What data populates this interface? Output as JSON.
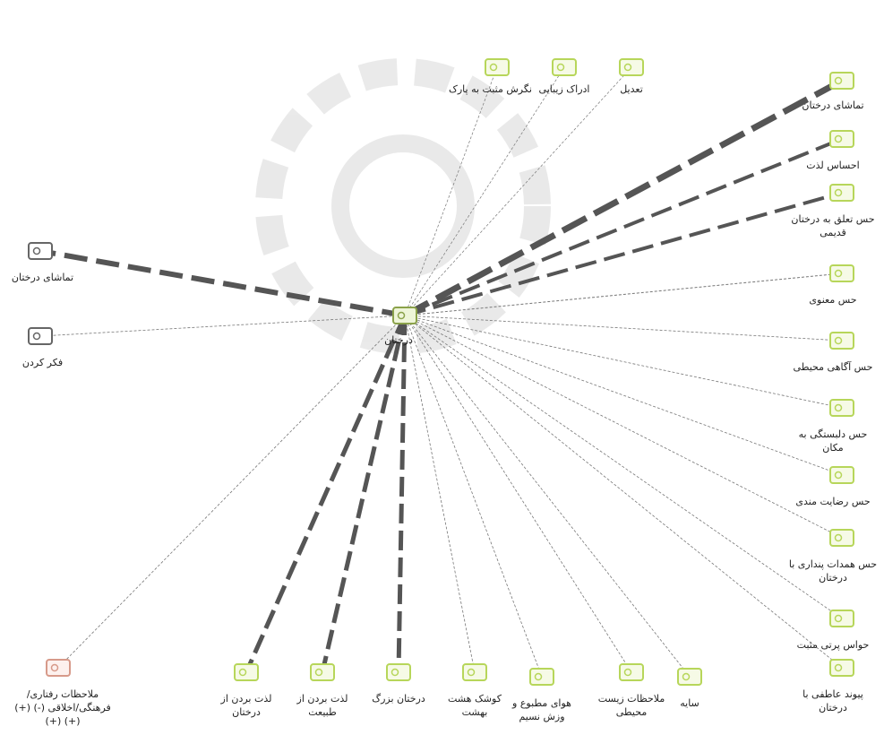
{
  "center": {
    "label": "درختان"
  },
  "nodes": [
    {
      "label": "نگرش مثبت به پارک"
    },
    {
      "label": "ادراک زیبایی"
    },
    {
      "label": "تعدیل"
    },
    {
      "label": "تماشای درختان"
    },
    {
      "label": "احساس لذت"
    },
    {
      "label": "حس تعلق به درختان قدیمی"
    },
    {
      "label": "حس معنوی"
    },
    {
      "label": "حس آگاهی محیطی"
    },
    {
      "label": "حس دلبستگی به مکان"
    },
    {
      "label": "حس رضایت مندی"
    },
    {
      "label": "حس همدات پنداری با درختان"
    },
    {
      "label": "حواس پرتی مثبت"
    },
    {
      "label": "پیوند عاطفی با درختان"
    },
    {
      "label": "تماشای درختان"
    },
    {
      "label": "فکر کردن"
    },
    {
      "label": "ملاحظات رفتاری/ فرهنگی/اخلاقی (-) (+) (+) (+)"
    },
    {
      "label": "لذت بردن از درختان"
    },
    {
      "label": "لذت بردن از طبیعت"
    },
    {
      "label": "درختان بزرگ"
    },
    {
      "label": "کوشک هشت بهشت"
    },
    {
      "label": "هوای مطبوع و وزش نسیم"
    },
    {
      "label": "ملاحظات زیست محیطی"
    },
    {
      "label": "سایه"
    }
  ]
}
